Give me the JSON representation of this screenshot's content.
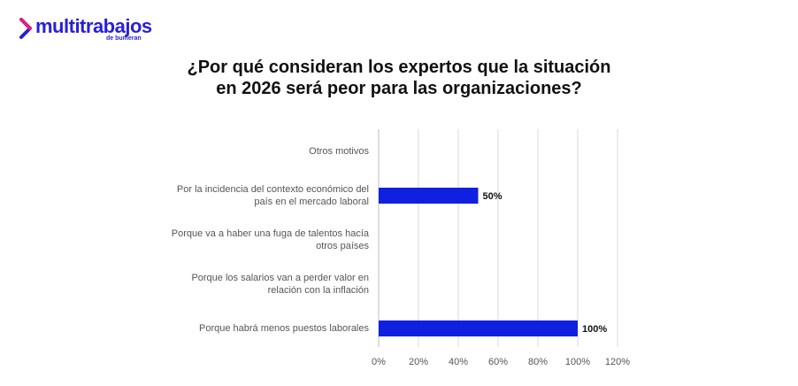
{
  "brand": {
    "name": "multitrabajos",
    "sub": "de bumeran",
    "color": "#2a1fd6"
  },
  "chart_data": {
    "type": "bar",
    "orientation": "horizontal",
    "title_lines": [
      "¿Por qué consideran los expertos que la situación",
      "en 2026 será peor para las organizaciones?"
    ],
    "categories": [
      [
        "Otros motivos"
      ],
      [
        "Por la incidencia del contexto económico del",
        "país en el mercado laboral"
      ],
      [
        "Porque va a haber una fuga de talentos hacía",
        "otros países"
      ],
      [
        "Porque los salarios van a perder valor en",
        "relación con la inflación"
      ],
      [
        "Porque habrá menos puestos laborales"
      ]
    ],
    "values": [
      0,
      50,
      0,
      0,
      100
    ],
    "data_labels": [
      "",
      "50%",
      "",
      "",
      "100%"
    ],
    "xlim": [
      0,
      120
    ],
    "xticks": [
      0,
      20,
      40,
      60,
      80,
      100,
      120
    ],
    "xtick_labels": [
      "0%",
      "20%",
      "40%",
      "60%",
      "80%",
      "100%",
      "120%"
    ],
    "grid": true,
    "bar_color": "#1020e0"
  }
}
